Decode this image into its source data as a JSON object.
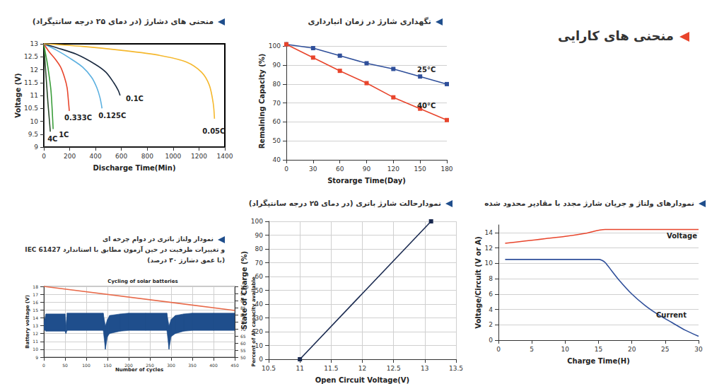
{
  "page_title": "منحنی های کارایی",
  "chart_data": [
    {
      "type": "line",
      "caption": "منحنی های دشارژ (در دمای ۲۵ درجه سانتیگراد)",
      "xlabel": "Discharge Time(Min)",
      "ylabel": "Voltage (V)",
      "xlim": [
        0,
        1400
      ],
      "xticks": [
        0,
        200,
        400,
        600,
        800,
        1000,
        1200,
        1400
      ],
      "ylim": [
        9,
        13
      ],
      "yticks": [
        9,
        9.5,
        10,
        10.5,
        11,
        11.5,
        12,
        12.5,
        13
      ],
      "grid": false,
      "series": [
        {
          "name": "4C",
          "color": "#2b4a2b",
          "x": [
            0,
            5,
            12,
            22,
            32,
            42,
            50
          ],
          "values": [
            13,
            12.6,
            12.1,
            11.4,
            10.7,
            10.1,
            9.6
          ]
        },
        {
          "name": "1C",
          "color": "#3a9d3a",
          "x": [
            0,
            10,
            25,
            40,
            55,
            65,
            72
          ],
          "values": [
            13,
            12.7,
            12.3,
            11.8,
            11.2,
            10.4,
            9.7
          ]
        },
        {
          "name": "0.333C",
          "color": "#e8452c",
          "x": [
            0,
            40,
            90,
            130,
            160,
            180,
            190,
            197
          ],
          "values": [
            13,
            12.7,
            12.4,
            12.1,
            11.7,
            11.3,
            10.8,
            10.4
          ]
        },
        {
          "name": "0.125C",
          "color": "#5bb0e0",
          "x": [
            0,
            100,
            200,
            300,
            370,
            410,
            435,
            450
          ],
          "values": [
            13,
            12.75,
            12.45,
            12.1,
            11.7,
            11.3,
            10.9,
            10.5
          ]
        },
        {
          "name": "0.1C",
          "color": "#1a2a40",
          "x": [
            0,
            100,
            250,
            400,
            480,
            540,
            575,
            590
          ],
          "values": [
            13,
            12.85,
            12.6,
            12.2,
            11.9,
            11.5,
            11.2,
            11.0
          ]
        },
        {
          "name": "0.05C",
          "color": "#f5b82e",
          "x": [
            0,
            300,
            600,
            900,
            1100,
            1220,
            1280,
            1310,
            1320
          ],
          "values": [
            13,
            12.9,
            12.75,
            12.55,
            12.3,
            11.9,
            11.4,
            10.7,
            10.1
          ]
        }
      ]
    },
    {
      "type": "line",
      "caption": "نگهداری شارژ در زمان انبارداری",
      "xlabel": "Storarge Time(Day)",
      "ylabel": "Remaining Capacity (%)",
      "xlim": [
        0,
        180
      ],
      "xticks": [
        0,
        30,
        60,
        90,
        120,
        150,
        180
      ],
      "ylim": [
        40,
        102
      ],
      "yticks": [
        40,
        50,
        60,
        70,
        80,
        90,
        100
      ],
      "grid": "y",
      "marker": "square",
      "series": [
        {
          "name": "25°C",
          "color": "#2f4f9a",
          "x": [
            0,
            30,
            60,
            90,
            120,
            150,
            180
          ],
          "values": [
            101,
            99,
            95,
            91,
            88,
            84,
            80
          ]
        },
        {
          "name": "40°C",
          "color": "#e8452c",
          "x": [
            0,
            30,
            60,
            90,
            120,
            150,
            180
          ],
          "values": [
            101,
            94,
            87,
            80.5,
            73,
            67,
            61
          ]
        }
      ]
    },
    {
      "type": "line",
      "caption": [
        "نمودار ولتاژ باتری در دوام چرخه ای",
        "و تغییرات ظرفیت در حین آزمون مطابق با استاندارد IEC 61427",
        "(با عمق دشارژ ۳۰ درصد)"
      ],
      "title": "Cycling of solar batteries",
      "xlabel": "Number of cycles",
      "ylabel": "Battery voltage (V)",
      "y2label": "Percent of Ah capacity available",
      "xlim": [
        0,
        450
      ],
      "xticks": [
        0,
        50,
        100,
        150,
        200,
        250,
        300,
        350,
        400,
        450
      ],
      "ylim": [
        9,
        18
      ],
      "yticks": [
        9,
        10,
        11,
        12,
        13,
        14,
        15,
        16,
        17,
        18
      ],
      "y2lim": [
        50,
        100
      ],
      "y2ticks": [
        50,
        55,
        60,
        65,
        70,
        75,
        80,
        85,
        90,
        95,
        100
      ],
      "grid": true,
      "series": [
        {
          "type": "band",
          "color": "#1f4e8c",
          "x": [
            0,
            5,
            50,
            52,
            55,
            140,
            145,
            150,
            155,
            180,
            200,
            240,
            290,
            295,
            300,
            310,
            330,
            350,
            400,
            450
          ],
          "values": [
            13.5,
            14.5,
            14.5,
            13,
            14.6,
            14.6,
            13,
            13.8,
            14.3,
            14.5,
            14.6,
            14.6,
            14.6,
            13,
            13.8,
            14.3,
            14.5,
            14.6,
            14.6,
            14.6
          ],
          "low": [
            12.5,
            12.3,
            12.3,
            12,
            12.4,
            12.4,
            10,
            11.6,
            12,
            12.3,
            12.4,
            12.4,
            12.4,
            10,
            11.6,
            12,
            12.3,
            12.4,
            12.4,
            12.4
          ]
        },
        {
          "type": "line",
          "color": "#e86a4a",
          "axis": "y2",
          "x": [
            0,
            450
          ],
          "values": [
            100,
            83
          ]
        }
      ]
    },
    {
      "type": "line",
      "caption": "نمودارحالت شارژ باتری (در دمای ۲۵ درجه سانتیگراد)",
      "xlabel": "Open Circuit Voltage(V)",
      "ylabel": "State of Charge (%)",
      "xlim": [
        10.5,
        13.5
      ],
      "xticks": [
        10.5,
        11,
        11.5,
        12,
        12.5,
        13,
        13.5
      ],
      "ylim": [
        0,
        100
      ],
      "yticks": [
        0,
        10,
        20,
        30,
        40,
        50,
        60,
        70,
        80,
        90,
        100
      ],
      "grid": true,
      "marker": "square",
      "series": [
        {
          "color": "#1a2a50",
          "x": [
            11.0,
            13.1
          ],
          "values": [
            0,
            100
          ]
        }
      ]
    },
    {
      "type": "line",
      "caption": "نمودارهای ولتاژ و جریان شارژ مجدد با مقادیر محدود شده",
      "xlabel": "Charge Time(H)",
      "ylabel": "Voltage/Circuit (V or A)",
      "xlim": [
        0,
        30
      ],
      "xticks": [
        0,
        5,
        10,
        15,
        20,
        25,
        30
      ],
      "ylim": [
        0,
        15
      ],
      "yticks": [
        0,
        2,
        4,
        6,
        8,
        10,
        12,
        14
      ],
      "grid": "y",
      "series": [
        {
          "name": "Voltage",
          "color": "#e8452c",
          "x": [
            1,
            4,
            7,
            10,
            13,
            16,
            20,
            25,
            30
          ],
          "values": [
            12.6,
            12.9,
            13.2,
            13.5,
            13.9,
            14.4,
            14.4,
            14.4,
            14.4
          ]
        },
        {
          "name": "Current",
          "color": "#2f4f9a",
          "x": [
            1,
            5,
            10,
            15,
            15.5,
            16,
            17,
            18,
            20,
            22,
            24,
            26,
            28,
            30
          ],
          "values": [
            10.5,
            10.5,
            10.5,
            10.5,
            10.4,
            10.1,
            9.0,
            7.9,
            6.0,
            4.5,
            3.3,
            2.3,
            1.3,
            0.5
          ]
        }
      ]
    }
  ]
}
